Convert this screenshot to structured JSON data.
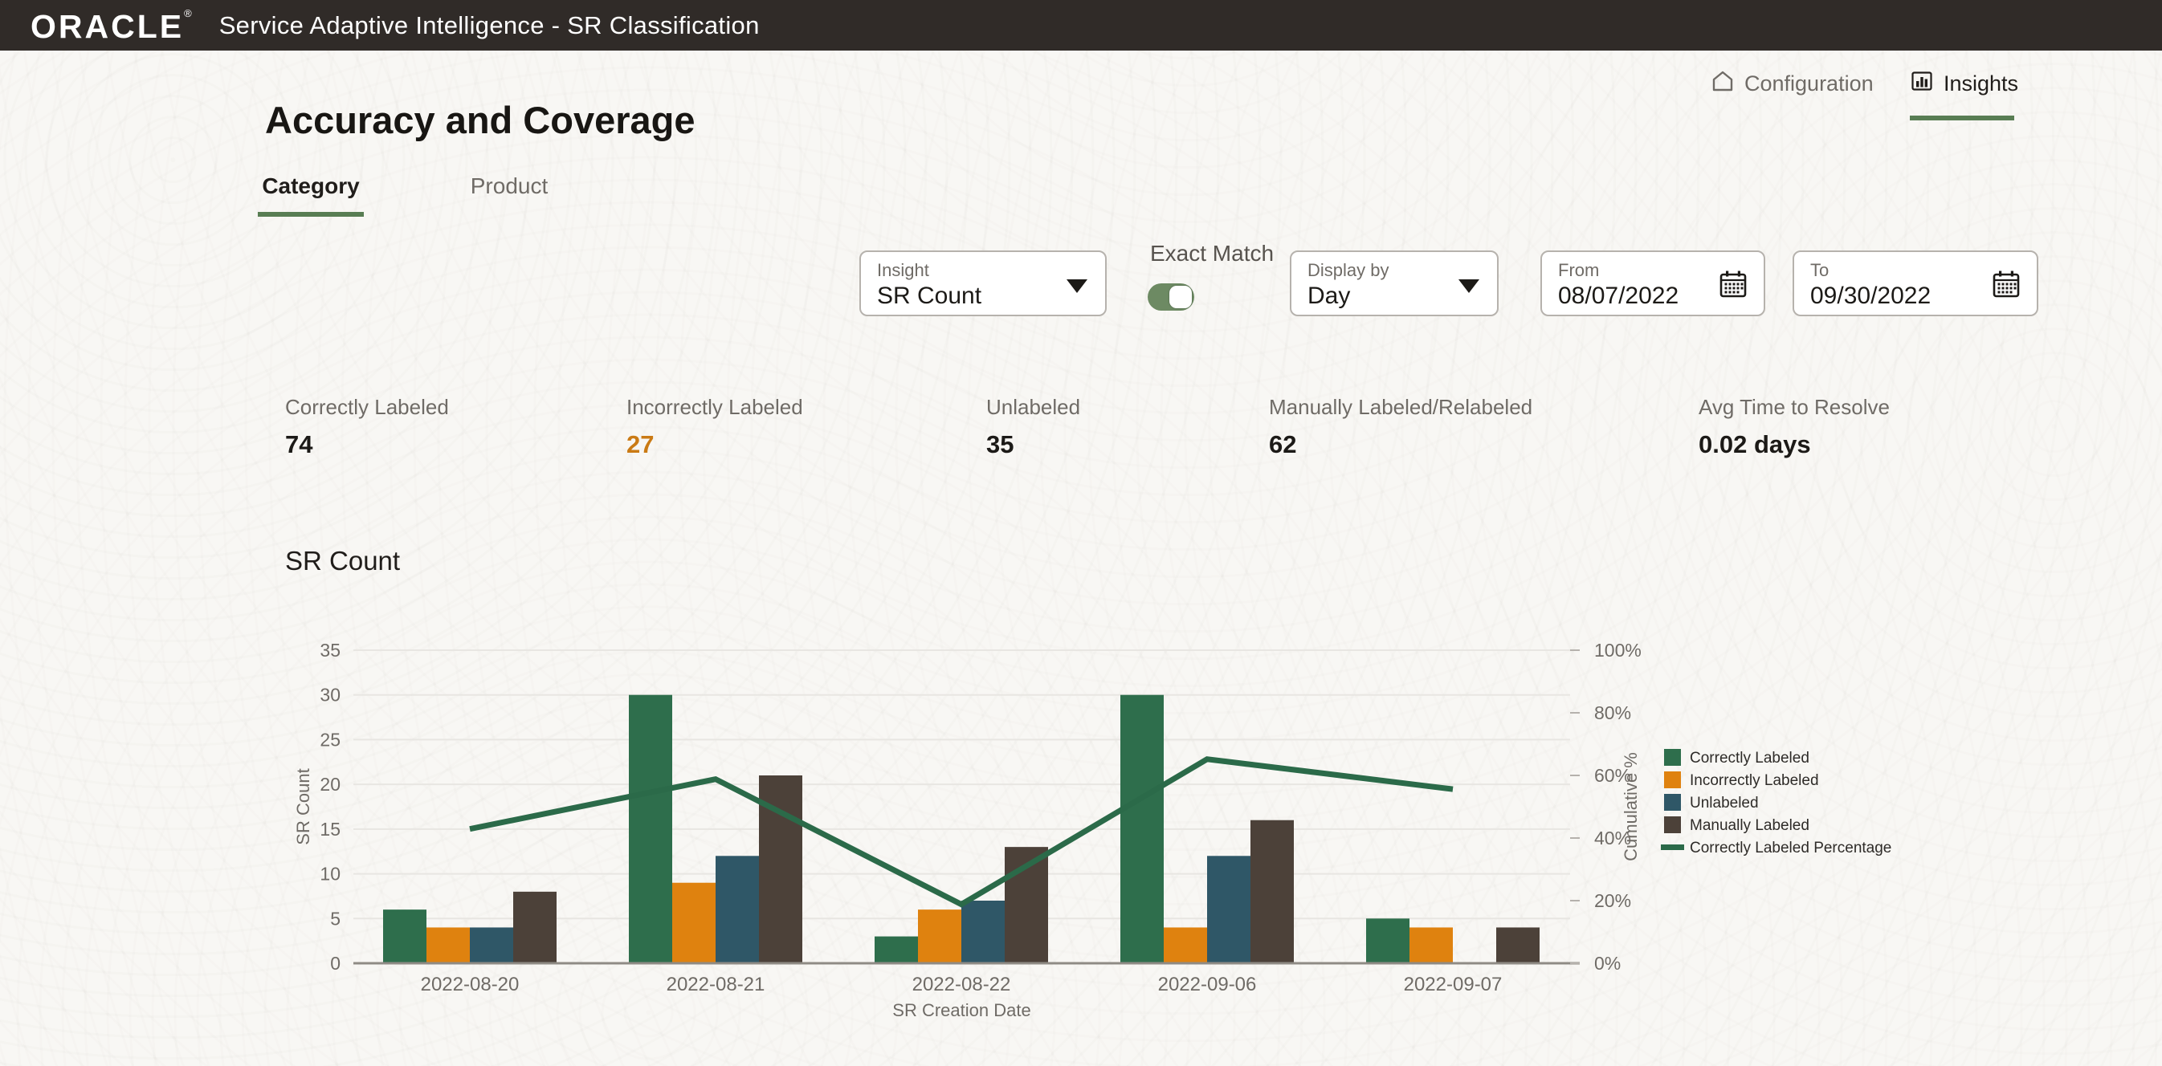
{
  "theme": {
    "header_bg": "#302b28",
    "page_bg": "#f8f7f4",
    "accent_green": "#587d53",
    "toggle_green": "#6d8a63",
    "border_gray": "#b6b2ad"
  },
  "header": {
    "brand": "ORACLE",
    "registered": "®",
    "title": "Service Adaptive Intelligence - SR Classification"
  },
  "nav": {
    "configuration": "Configuration",
    "insights": "Insights"
  },
  "page": {
    "title": "Accuracy and Coverage"
  },
  "tabs": {
    "category": "Category",
    "product": "Product"
  },
  "filters": {
    "insight": {
      "label": "Insight",
      "value": "SR Count"
    },
    "exact_match": {
      "label": "Exact Match",
      "on": true
    },
    "display_by": {
      "label": "Display by",
      "value": "Day"
    },
    "from": {
      "label": "From",
      "value": "08/07/2022"
    },
    "to": {
      "label": "To",
      "value": "09/30/2022"
    }
  },
  "metrics": [
    {
      "label": "Correctly Labeled",
      "value": "74",
      "value_color": "#1c1a17"
    },
    {
      "label": "Incorrectly Labeled",
      "value": "27",
      "value_color": "#ca7a14"
    },
    {
      "label": "Unlabeled",
      "value": "35",
      "value_color": "#1c1a17"
    },
    {
      "label": "Manually Labeled/Relabeled",
      "value": "62",
      "value_color": "#1c1a17"
    },
    {
      "label": "Avg Time to Resolve",
      "value": "0.02 days",
      "value_color": "#1c1a17"
    }
  ],
  "chart_title": "SR Count",
  "chart_data": {
    "type": "bar+line",
    "title": "SR Count",
    "categories": [
      "2022-08-20",
      "2022-08-21",
      "2022-08-22",
      "2022-09-06",
      "2022-09-07"
    ],
    "series": [
      {
        "name": "Correctly Labeled",
        "values": [
          6,
          30,
          3,
          30,
          5
        ],
        "color": "#2e6e4c"
      },
      {
        "name": "Incorrectly Labeled",
        "values": [
          4,
          9,
          6,
          4,
          4
        ],
        "color": "#df820f"
      },
      {
        "name": "Unlabeled",
        "values": [
          4,
          12,
          7,
          12,
          0
        ],
        "color": "#2f5767"
      },
      {
        "name": "Manually Labeled",
        "values": [
          8,
          21,
          13,
          16,
          4
        ],
        "color": "#4c4139"
      }
    ],
    "line_series": {
      "name": "Correctly Labeled Percentage",
      "values": [
        42.9,
        58.8,
        18.8,
        65.2,
        55.6
      ],
      "color": "#2b6a49"
    },
    "xlabel": "SR Creation Date",
    "ylabel_left": "SR Count",
    "ylabel_right": "Cumulative %",
    "ylim_left": [
      0,
      35
    ],
    "yticks_left": [
      0,
      5,
      10,
      15,
      20,
      25,
      30,
      35
    ],
    "ylim_right": [
      0,
      100
    ],
    "yticks_right": [
      0,
      20,
      40,
      60,
      80,
      100
    ],
    "yticks_right_labels": [
      "0%",
      "20%",
      "40%",
      "60%",
      "80%",
      "100%"
    ],
    "grid": true,
    "legend_position": "right",
    "legend": [
      "Correctly Labeled",
      "Incorrectly Labeled",
      "Unlabeled",
      "Manually Labeled",
      "Correctly Labeled Percentage"
    ]
  }
}
